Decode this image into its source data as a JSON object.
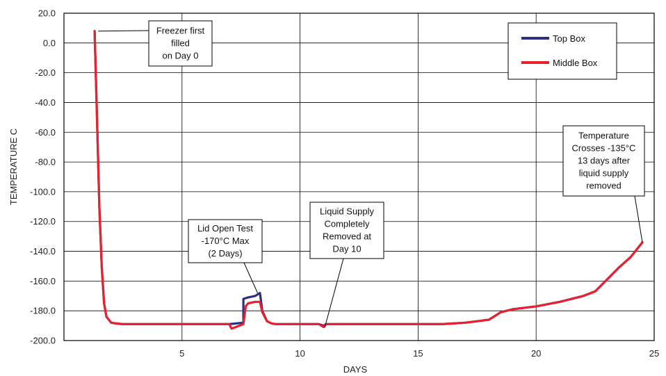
{
  "chart_data": {
    "type": "line",
    "xlabel": "DAYS",
    "ylabel": "TEMPERATURE C",
    "xlim": [
      0,
      25
    ],
    "ylim": [
      -200,
      20
    ],
    "x_ticks": [
      "5",
      "10",
      "15",
      "20",
      "25"
    ],
    "x_tick_values": [
      5,
      10,
      15,
      20,
      25
    ],
    "y_ticks": [
      "20.0",
      "0.0",
      "-20.0",
      "-40.0",
      "-60.0",
      "-80.0",
      "-100.0",
      "-120.0",
      "-140.0",
      "-160.0",
      "-180.0",
      "-200.0"
    ],
    "y_tick_values": [
      20,
      0,
      -20,
      -40,
      -60,
      -80,
      -100,
      -120,
      -140,
      -160,
      -180,
      -200
    ],
    "grid": true,
    "legend_position": "top-right",
    "series": [
      {
        "name": "Top Box",
        "color": "#2b2f7f",
        "x": [
          1.3,
          1.4,
          1.5,
          1.6,
          1.7,
          1.8,
          1.9,
          2.0,
          2.2,
          2.5,
          3.0,
          4.0,
          5.0,
          6.0,
          7.0,
          7.6,
          7.6,
          7.8,
          8.1,
          8.3,
          8.4,
          8.6,
          8.8,
          9.0,
          9.5,
          10.0,
          10.5,
          10.8,
          11.0,
          11.1,
          11.5,
          12.0,
          13.0,
          14.0,
          15.0,
          16.0,
          17.0,
          17.5,
          18.0,
          18.5,
          19.0,
          20.0,
          21.0,
          22.0,
          22.5,
          23.0,
          23.5,
          24.0,
          24.5
        ],
        "y": [
          8,
          -50,
          -110,
          -150,
          -175,
          -184,
          -186,
          -188,
          -188.5,
          -189,
          -189,
          -189,
          -189,
          -189,
          -189,
          -188,
          -172,
          -171,
          -170,
          -168,
          -180,
          -187,
          -188.5,
          -189,
          -189,
          -189,
          -189,
          -189,
          -190,
          -189,
          -189,
          -189,
          -189,
          -189,
          -189,
          -189,
          -188,
          -187,
          -186,
          -181,
          -179,
          -177,
          -174,
          -170,
          -167,
          -159,
          -151,
          -144,
          -134
        ]
      },
      {
        "name": "Middle Box",
        "color": "#e8212e",
        "x": [
          1.3,
          1.4,
          1.5,
          1.6,
          1.7,
          1.8,
          1.9,
          2.0,
          2.2,
          2.5,
          3.0,
          4.0,
          5.0,
          6.0,
          7.0,
          7.1,
          7.6,
          7.7,
          7.8,
          8.1,
          8.3,
          8.4,
          8.6,
          8.8,
          9.0,
          9.5,
          10.0,
          10.5,
          10.8,
          11.0,
          11.1,
          11.5,
          12.0,
          13.0,
          14.0,
          15.0,
          16.0,
          17.0,
          17.5,
          18.0,
          18.5,
          19.0,
          20.0,
          21.0,
          22.0,
          22.5,
          23.0,
          23.5,
          24.0,
          24.5
        ],
        "y": [
          8,
          -50,
          -110,
          -150,
          -175,
          -184,
          -186,
          -188,
          -188.5,
          -189,
          -189,
          -189,
          -189,
          -189,
          -189,
          -192,
          -189,
          -177,
          -175,
          -174,
          -174,
          -181,
          -187,
          -188.5,
          -189,
          -189,
          -189,
          -189,
          -189,
          -191,
          -189,
          -189,
          -189,
          -189,
          -189,
          -189,
          -189,
          -188,
          -187,
          -186,
          -181,
          -179,
          -177,
          -174,
          -170,
          -167,
          -159,
          -151,
          -144,
          -134
        ]
      }
    ],
    "annotations": [
      {
        "lines": [
          "Freezer first",
          "filled",
          "on Day 0"
        ],
        "point": [
          1.45,
          8
        ]
      },
      {
        "lines": [
          "Lid Open Test",
          "-170°C Max",
          "(2 Days)"
        ],
        "point": [
          8.2,
          -168
        ]
      },
      {
        "lines": [
          "Liquid Supply",
          "Completely",
          "Removed at",
          "Day 10"
        ],
        "point": [
          11.05,
          -191
        ]
      },
      {
        "lines": [
          "Temperature",
          "Crosses -135°C",
          "13 days after",
          "liquid supply",
          "removed"
        ],
        "point": [
          24.5,
          -134
        ]
      }
    ]
  }
}
